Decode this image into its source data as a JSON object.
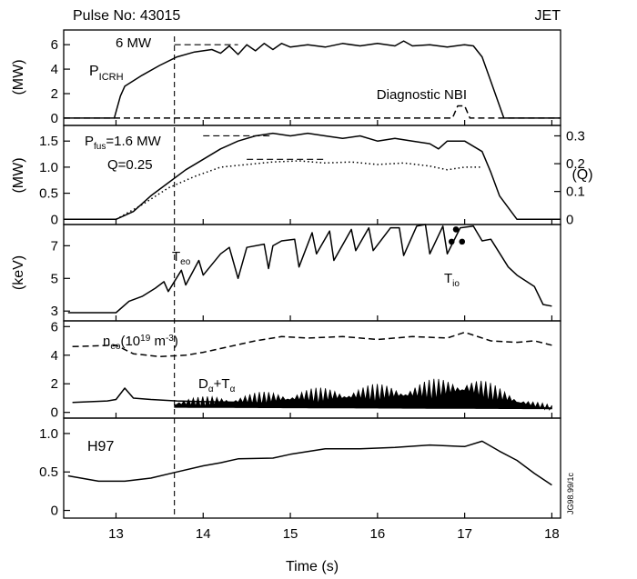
{
  "header": {
    "pulse": "Pulse No: 43015",
    "device": "JET"
  },
  "source_code": "JG98.99/1c",
  "xaxis": {
    "label": "Time (s)",
    "xlim": [
      12.4,
      18.1
    ],
    "ticks": [
      "13",
      "14",
      "15",
      "16",
      "17",
      "18"
    ],
    "tick_values": [
      13,
      14,
      15,
      16,
      17,
      18
    ]
  },
  "marker_time": 13.67,
  "colors": {
    "line": "#000000",
    "fill": "#000000",
    "background": "#ffffff"
  },
  "chart_data": [
    {
      "type": "line",
      "ylabel": "(MW)",
      "ylim": [
        -0.6,
        7.2
      ],
      "yticks": [
        "0",
        "2",
        "4",
        "6"
      ],
      "ytick_values": [
        0,
        2,
        4,
        6
      ],
      "labels": {
        "picrh_main": "P",
        "picrh_sub": "ICRH",
        "level": "6 MW",
        "nbi": "Diagnostic NBI"
      },
      "reference_line": {
        "value": 6,
        "x_from": 13.67,
        "x_to": 14.4,
        "style": "dashed"
      },
      "series": [
        {
          "style": "solid",
          "x": [
            12.4,
            12.98,
            13.05,
            13.1,
            13.3,
            13.5,
            13.7,
            13.9,
            14.1,
            14.2,
            14.3,
            14.4,
            14.5,
            14.6,
            14.7,
            14.8,
            14.9,
            15.0,
            15.2,
            15.4,
            15.6,
            15.8,
            16.0,
            16.2,
            16.3,
            16.4,
            16.6,
            16.8,
            17.0,
            17.1,
            17.2,
            17.3,
            17.45,
            18.1
          ],
          "y": [
            0,
            0,
            1.8,
            2.6,
            3.5,
            4.3,
            5.0,
            5.4,
            5.6,
            5.3,
            5.9,
            5.2,
            6.0,
            5.5,
            6.1,
            5.6,
            6.1,
            5.8,
            6.0,
            5.8,
            6.1,
            5.9,
            6.1,
            5.9,
            6.3,
            5.9,
            6.0,
            5.8,
            6.0,
            5.9,
            5.0,
            3.0,
            0,
            0
          ]
        },
        {
          "style": "dashed",
          "x": [
            12.4,
            16.86,
            16.92,
            17.0,
            17.06,
            18.1
          ],
          "y": [
            0,
            0,
            1.0,
            1.0,
            0,
            0
          ]
        }
      ]
    },
    {
      "type": "line",
      "ylabel": "(MW)",
      "ylim": [
        -0.1,
        1.8
      ],
      "yticks": [
        "0",
        "0.5",
        "1.0",
        "1.5"
      ],
      "ytick_values": [
        0,
        0.5,
        1.0,
        1.5
      ],
      "right_axis": {
        "label": "(Q)",
        "ticks": [
          "0",
          "0.1",
          "0.2",
          "0.3"
        ],
        "tick_values": [
          0,
          0.1,
          0.2,
          0.3
        ],
        "scale_mw_per_q": 5.333
      },
      "labels": {
        "pfus_main": "P",
        "pfus_sub": "fus",
        "pfus_value": "=1.6 MW",
        "q": "Q=0.25"
      },
      "reference_lines": [
        {
          "value": 1.6,
          "x_from": 14.0,
          "x_to": 14.8,
          "style": "dashed"
        },
        {
          "value": 1.15,
          "x_from": 14.5,
          "x_to": 15.4,
          "style": "dashed"
        }
      ],
      "series": [
        {
          "name": "P_fus",
          "style": "solid",
          "x": [
            12.4,
            13.0,
            13.2,
            13.4,
            13.6,
            13.8,
            14.0,
            14.2,
            14.4,
            14.6,
            14.8,
            15.0,
            15.2,
            15.4,
            15.6,
            15.8,
            16.0,
            16.2,
            16.4,
            16.6,
            16.7,
            16.8,
            17.0,
            17.2,
            17.3,
            17.4,
            17.6,
            18.1
          ],
          "y": [
            0,
            0,
            0.15,
            0.45,
            0.7,
            0.95,
            1.15,
            1.35,
            1.5,
            1.6,
            1.65,
            1.6,
            1.65,
            1.6,
            1.55,
            1.6,
            1.5,
            1.55,
            1.5,
            1.45,
            1.35,
            1.5,
            1.5,
            1.3,
            0.9,
            0.45,
            0,
            0
          ]
        },
        {
          "name": "Q",
          "style": "dotted",
          "x": [
            13.0,
            13.3,
            13.6,
            13.9,
            14.2,
            14.5,
            14.8,
            15.1,
            15.4,
            15.7,
            16.0,
            16.3,
            16.6,
            16.8,
            17.0,
            17.2
          ],
          "y": [
            0,
            0.28,
            0.6,
            0.82,
            1.0,
            1.05,
            1.1,
            1.12,
            1.08,
            1.1,
            1.05,
            1.08,
            1.02,
            0.95,
            1.0,
            1.0
          ]
        }
      ]
    },
    {
      "type": "line",
      "ylabel": "(keV)",
      "ylim": [
        2.4,
        8.3
      ],
      "yticks": [
        "3",
        "5",
        "7"
      ],
      "ytick_values": [
        3,
        5,
        7
      ],
      "labels": {
        "teo_main": "T",
        "teo_sub": "eo",
        "tio_main": "T",
        "tio_sub": "io"
      },
      "series": [
        {
          "name": "T_eo",
          "style": "solid",
          "x": [
            12.45,
            13.0,
            13.15,
            13.3,
            13.45,
            13.55,
            13.6,
            13.75,
            13.8,
            13.95,
            14.0,
            14.2,
            14.3,
            14.4,
            14.5,
            14.7,
            14.75,
            14.8,
            14.9,
            15.05,
            15.1,
            15.25,
            15.3,
            15.45,
            15.5,
            15.7,
            15.75,
            15.9,
            15.95,
            16.15,
            16.25,
            16.3,
            16.45,
            16.55,
            16.6,
            16.75,
            16.8,
            16.95,
            17.1,
            17.2,
            17.3,
            17.5,
            17.6,
            17.8,
            17.9,
            18.0
          ],
          "y": [
            2.9,
            2.9,
            3.6,
            3.9,
            4.4,
            4.8,
            4.2,
            5.5,
            4.6,
            6.1,
            5.2,
            6.5,
            6.9,
            5.0,
            6.9,
            7.1,
            5.6,
            7.0,
            7.3,
            7.4,
            5.7,
            7.8,
            6.5,
            7.9,
            6.1,
            8.0,
            6.7,
            8.1,
            6.7,
            8.1,
            8.1,
            6.4,
            8.2,
            8.3,
            6.5,
            8.2,
            6.5,
            8.1,
            8.2,
            7.3,
            7.4,
            5.7,
            5.2,
            4.5,
            3.4,
            3.3
          ]
        }
      ],
      "points": {
        "name": "T_io",
        "x": [
          16.9,
          16.85,
          16.97
        ],
        "y": [
          8.0,
          7.25,
          7.25
        ]
      }
    },
    {
      "type": "line",
      "ylabel": "",
      "ylim": [
        -0.4,
        6.4
      ],
      "yticks": [
        "0",
        "2",
        "4",
        "6"
      ],
      "ytick_values": [
        0,
        2,
        4,
        6
      ],
      "labels": {
        "neo": "n",
        "neo_sub": "eo",
        "neo_unit": "(10",
        "neo_exp": "19",
        "neo_unit_end": " m",
        "neo_exp2": "-3",
        "neo_close": ")",
        "dt": "D",
        "dt_sub1": "α",
        "dt_plus": "+T",
        "dt_sub2": "α"
      },
      "series": [
        {
          "name": "n_eo",
          "style": "dashed",
          "x": [
            12.5,
            13.0,
            13.2,
            13.5,
            13.8,
            14.0,
            14.3,
            14.6,
            14.9,
            15.2,
            15.6,
            16.0,
            16.4,
            16.8,
            17.0,
            17.3,
            17.6,
            17.8,
            18.0
          ],
          "y": [
            4.6,
            4.7,
            4.1,
            3.9,
            4.0,
            4.2,
            4.6,
            5.0,
            5.3,
            5.2,
            5.3,
            5.1,
            5.3,
            5.2,
            5.6,
            5.0,
            4.9,
            5.0,
            4.7
          ]
        },
        {
          "name": "D_alpha+T_alpha baseline",
          "style": "solid",
          "x": [
            12.5,
            12.9,
            13.0,
            13.1,
            13.2,
            13.4,
            13.7,
            14.0,
            14.5,
            15.0,
            15.5,
            16.0,
            16.5,
            17.0,
            17.3,
            17.6,
            18.0
          ],
          "y": [
            0.7,
            0.8,
            0.9,
            1.7,
            1.0,
            0.9,
            0.8,
            0.75,
            0.7,
            0.6,
            0.5,
            0.4,
            0.4,
            0.5,
            0.55,
            0.4,
            0.3
          ]
        },
        {
          "name": "D_alpha+T_alpha envelope",
          "style": "filled",
          "x": [
            13.67,
            14.0,
            14.4,
            14.8,
            15.2,
            15.6,
            16.0,
            16.4,
            16.8,
            17.0,
            17.2,
            17.4,
            17.6,
            17.8,
            18.0
          ],
          "y": [
            1.0,
            1.1,
            1.3,
            1.5,
            1.7,
            1.8,
            2.0,
            2.1,
            2.5,
            2.8,
            2.3,
            1.8,
            1.3,
            0.8,
            0.5
          ]
        }
      ]
    },
    {
      "type": "line",
      "ylabel": "",
      "ylim": [
        -0.1,
        1.2
      ],
      "yticks": [
        "0",
        "0.5",
        "1.0"
      ],
      "ytick_values": [
        0,
        0.5,
        1.0
      ],
      "labels": {
        "h97": "H97"
      },
      "series": [
        {
          "name": "H97",
          "style": "solid",
          "x": [
            12.45,
            12.8,
            13.1,
            13.4,
            13.7,
            14.0,
            14.2,
            14.4,
            14.8,
            15.0,
            15.4,
            15.8,
            16.2,
            16.6,
            17.0,
            17.2,
            17.4,
            17.6,
            17.8,
            18.0
          ],
          "y": [
            0.45,
            0.38,
            0.38,
            0.42,
            0.5,
            0.58,
            0.62,
            0.67,
            0.68,
            0.73,
            0.8,
            0.8,
            0.82,
            0.85,
            0.83,
            0.9,
            0.77,
            0.65,
            0.48,
            0.33
          ]
        }
      ]
    }
  ]
}
